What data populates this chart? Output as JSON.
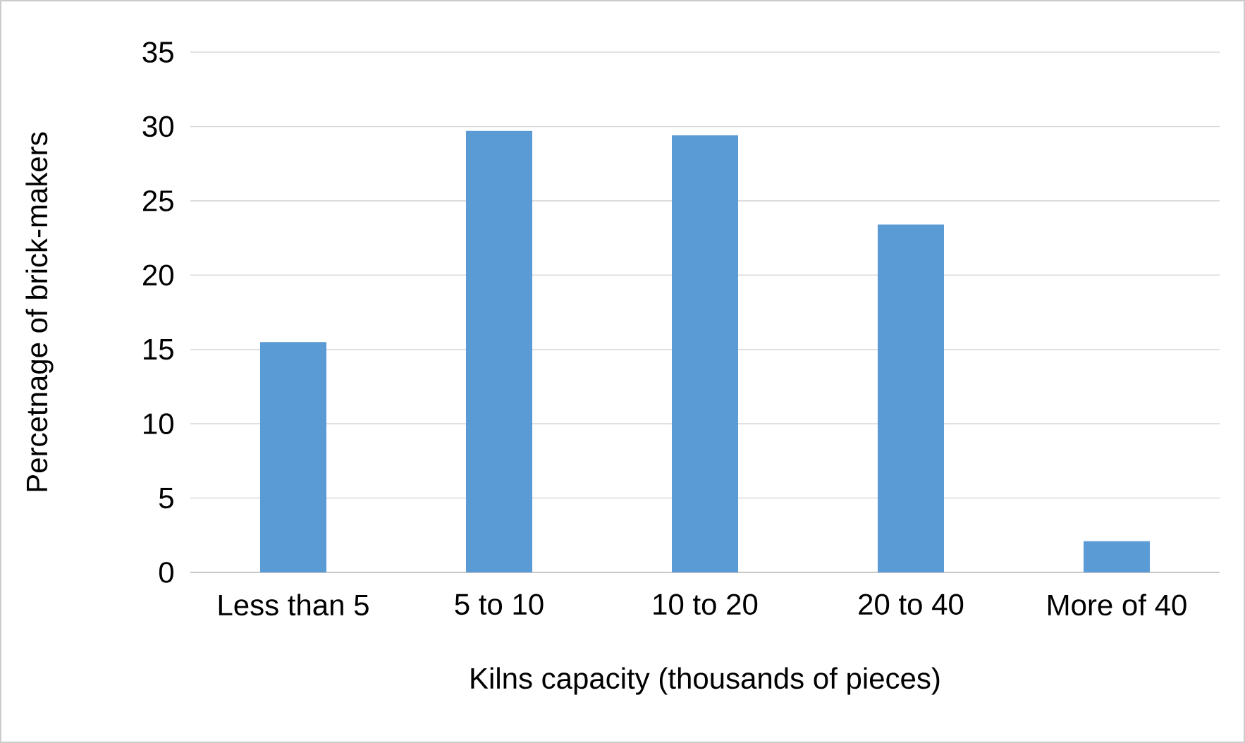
{
  "chart_data": {
    "type": "bar",
    "xlabel": "Kilns capacity (thousands of pieces)",
    "ylabel": "Percetnage of brick-makers",
    "categories": [
      "Less than 5",
      "5 to 10",
      "10 to 20",
      "20 to 40",
      "More of 40"
    ],
    "values": [
      15.5,
      29.7,
      29.4,
      23.4,
      2.1
    ],
    "color": "#5b9bd5",
    "ylim": [
      0,
      35
    ],
    "yticks": [
      0,
      5,
      10,
      15,
      20,
      25,
      30,
      35
    ],
    "grid": "y"
  }
}
